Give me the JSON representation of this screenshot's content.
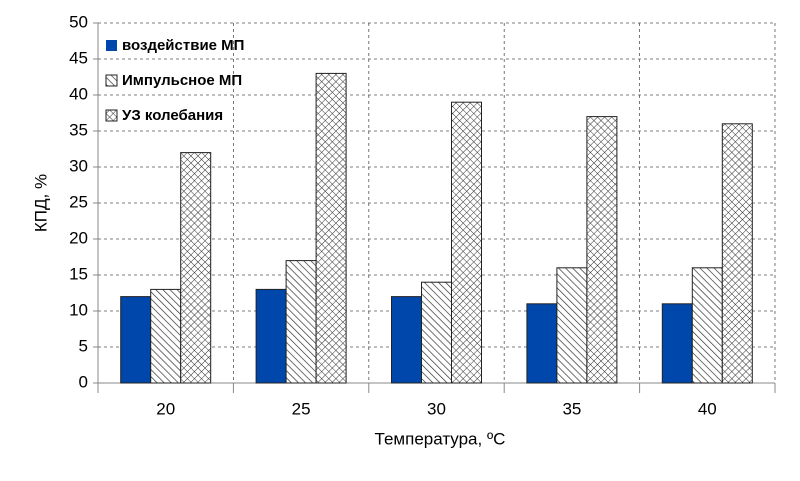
{
  "chart_data": {
    "type": "bar",
    "x_label": "Температура, ºC",
    "y_label": "КПД, %",
    "categories": [
      "20",
      "25",
      "30",
      "35",
      "40"
    ],
    "series": [
      {
        "name": "воздействие МП",
        "color": "#0047ab",
        "pattern": "solid",
        "values": [
          12,
          13,
          12,
          11,
          11
        ]
      },
      {
        "name": "Импульсное МП",
        "color": "#333333",
        "pattern": "diagonal",
        "values": [
          13,
          17,
          14,
          16,
          16
        ]
      },
      {
        "name": "УЗ колебания",
        "color": "#333333",
        "pattern": "crosshatch",
        "values": [
          32,
          43,
          39,
          37,
          36
        ]
      }
    ],
    "ylim": [
      0,
      50
    ],
    "yticks": [
      0,
      5,
      10,
      15,
      20,
      25,
      30,
      35,
      40,
      45,
      50
    ],
    "grid": true,
    "legend": "top-left"
  }
}
